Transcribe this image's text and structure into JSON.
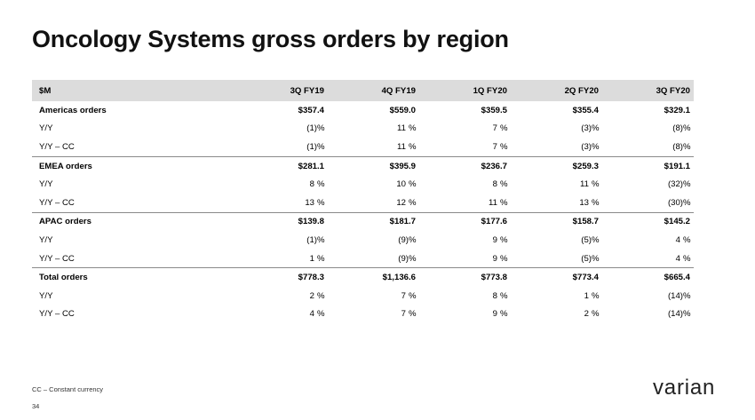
{
  "title": "Oncology Systems gross orders by region",
  "table": {
    "header": [
      "$M",
      "3Q FY19",
      "4Q FY19",
      "1Q FY20",
      "2Q FY20",
      "3Q FY20"
    ],
    "rows": [
      {
        "label": "Americas orders",
        "values": [
          "$357.4",
          "$559.0",
          "$359.5",
          "$355.4",
          "$329.1"
        ]
      },
      {
        "label": "Y/Y",
        "values": [
          "(1)",
          "11",
          "7",
          "(3)",
          "(8)"
        ]
      },
      {
        "label": "Y/Y – CC",
        "values": [
          "(1)",
          "11",
          "7",
          "(3)",
          "(8)"
        ]
      },
      {
        "label": "EMEA orders",
        "values": [
          "$281.1",
          "$395.9",
          "$236.7",
          "$259.3",
          "$191.1"
        ]
      },
      {
        "label": "Y/Y",
        "values": [
          "8",
          "10",
          "8",
          "11",
          "(32)"
        ]
      },
      {
        "label": "Y/Y – CC",
        "values": [
          "13",
          "12",
          "11",
          "13",
          "(30)"
        ]
      },
      {
        "label": "APAC orders",
        "values": [
          "$139.8",
          "$181.7",
          "$177.6",
          "$158.7",
          "$145.2"
        ]
      },
      {
        "label": "Y/Y",
        "values": [
          "(1)",
          "(9)",
          "9",
          "(5)",
          "4"
        ]
      },
      {
        "label": "Y/Y – CC",
        "values": [
          "1",
          "(9)",
          "9",
          "(5)",
          "4"
        ]
      },
      {
        "label": "Total orders",
        "values": [
          "$778.3",
          "$1,136.6",
          "$773.8",
          "$773.4",
          "$665.4"
        ]
      },
      {
        "label": "Y/Y",
        "values": [
          "2",
          "7",
          "8",
          "1",
          "(14)"
        ]
      },
      {
        "label": "Y/Y – CC",
        "values": [
          "4",
          "7",
          "9",
          "2",
          "(14)"
        ]
      }
    ],
    "percent_sign": "%"
  },
  "footnote": "CC – Constant currency",
  "page_number": "34",
  "logo_text": "varian"
}
